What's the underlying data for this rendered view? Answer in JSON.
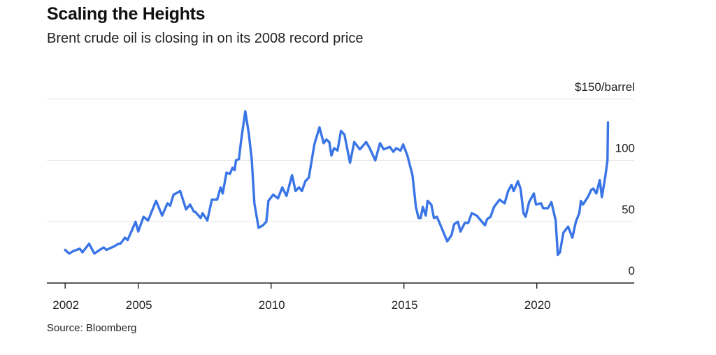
{
  "chart_data": {
    "type": "line",
    "title": "Scaling the Heights",
    "subtitle": "Brent crude oil is closing in on its 2008 record price",
    "source": "Source: Bloomberg",
    "xlabel": "",
    "ylabel": "$/barrel",
    "xlim": [
      2001.75,
      2024.0
    ],
    "ylim": [
      0,
      150
    ],
    "grid": true,
    "y_axis_side": "right",
    "yticks": [
      {
        "value": 0,
        "label": "0"
      },
      {
        "value": 50,
        "label": "50"
      },
      {
        "value": 100,
        "label": "100"
      },
      {
        "value": 150,
        "label": "$150/barrel"
      }
    ],
    "xticks": [
      {
        "value": 2002.25,
        "label": "2002"
      },
      {
        "value": 2005,
        "label": "2005"
      },
      {
        "value": 2010,
        "label": "2010"
      },
      {
        "value": 2015,
        "label": "2015"
      },
      {
        "value": 2020,
        "label": "2020"
      }
    ],
    "series": [
      {
        "name": "Brent crude",
        "color": "#3a75e6",
        "points": [
          [
            2002.25,
            27
          ],
          [
            2002.4,
            24
          ],
          [
            2002.55,
            26
          ],
          [
            2002.8,
            28
          ],
          [
            2002.9,
            25
          ],
          [
            2003.15,
            32
          ],
          [
            2003.35,
            24
          ],
          [
            2003.55,
            27
          ],
          [
            2003.7,
            29
          ],
          [
            2003.8,
            27
          ],
          [
            2004.1,
            30
          ],
          [
            2004.25,
            32
          ],
          [
            2004.33,
            32
          ],
          [
            2004.5,
            37
          ],
          [
            2004.6,
            35
          ],
          [
            2004.7,
            40
          ],
          [
            2004.9,
            50
          ],
          [
            2005.0,
            42
          ],
          [
            2005.2,
            54
          ],
          [
            2005.37,
            51
          ],
          [
            2005.67,
            67
          ],
          [
            2005.9,
            55
          ],
          [
            2006.1,
            65
          ],
          [
            2006.2,
            63
          ],
          [
            2006.33,
            72
          ],
          [
            2006.58,
            75
          ],
          [
            2006.8,
            60
          ],
          [
            2006.95,
            64
          ],
          [
            2007.1,
            58
          ],
          [
            2007.15,
            58
          ],
          [
            2007.35,
            53
          ],
          [
            2007.42,
            57
          ],
          [
            2007.6,
            51
          ],
          [
            2007.77,
            68
          ],
          [
            2007.97,
            68
          ],
          [
            2008.1,
            78
          ],
          [
            2008.18,
            73
          ],
          [
            2008.32,
            90
          ],
          [
            2008.45,
            89
          ],
          [
            2008.55,
            94
          ],
          [
            2008.63,
            92
          ],
          [
            2008.68,
            100
          ],
          [
            2008.79,
            101
          ],
          [
            2008.87,
            116
          ],
          [
            2009.03,
            140
          ],
          [
            2009.16,
            122
          ],
          [
            2009.27,
            101
          ],
          [
            2009.37,
            65
          ],
          [
            2009.53,
            45
          ],
          [
            2009.69,
            47
          ],
          [
            2009.82,
            50
          ],
          [
            2009.9,
            67
          ],
          [
            2010.08,
            72
          ],
          [
            2010.26,
            69
          ],
          [
            2010.42,
            78
          ],
          [
            2010.58,
            71
          ],
          [
            2010.79,
            88
          ],
          [
            2010.92,
            75
          ],
          [
            2011.05,
            78
          ],
          [
            2011.16,
            75
          ],
          [
            2011.29,
            83
          ],
          [
            2011.42,
            86
          ],
          [
            2011.63,
            113
          ],
          [
            2011.82,
            127
          ],
          [
            2011.98,
            114
          ],
          [
            2012.08,
            117
          ],
          [
            2012.19,
            115
          ],
          [
            2012.27,
            104
          ],
          [
            2012.37,
            110
          ],
          [
            2012.5,
            108
          ],
          [
            2012.63,
            124
          ],
          [
            2012.76,
            121
          ],
          [
            2012.97,
            98
          ],
          [
            2013.13,
            115
          ],
          [
            2013.34,
            109
          ],
          [
            2013.58,
            115
          ],
          [
            2013.71,
            110
          ],
          [
            2013.92,
            100
          ],
          [
            2014.1,
            114
          ],
          [
            2014.24,
            109
          ],
          [
            2014.47,
            111
          ],
          [
            2014.6,
            107
          ],
          [
            2014.71,
            110
          ],
          [
            2014.87,
            108
          ],
          [
            2014.97,
            113
          ],
          [
            2015.13,
            104
          ],
          [
            2015.32,
            88
          ],
          [
            2015.45,
            62
          ],
          [
            2015.55,
            53
          ],
          [
            2015.63,
            53
          ],
          [
            2015.71,
            62
          ],
          [
            2015.82,
            55
          ],
          [
            2015.89,
            67
          ],
          [
            2016.03,
            64
          ],
          [
            2016.13,
            53
          ],
          [
            2016.24,
            54
          ],
          [
            2016.34,
            49
          ],
          [
            2016.63,
            34
          ],
          [
            2016.79,
            39
          ],
          [
            2016.89,
            48
          ],
          [
            2017.03,
            50
          ],
          [
            2017.13,
            42
          ],
          [
            2017.29,
            49
          ],
          [
            2017.42,
            49
          ],
          [
            2017.55,
            57
          ],
          [
            2017.74,
            55
          ],
          [
            2018.05,
            47
          ],
          [
            2018.13,
            52
          ],
          [
            2018.26,
            54
          ],
          [
            2018.39,
            62
          ],
          [
            2018.6,
            68
          ],
          [
            2018.79,
            65
          ],
          [
            2018.92,
            75
          ],
          [
            2019.05,
            80
          ],
          [
            2019.13,
            75
          ],
          [
            2019.29,
            83
          ],
          [
            2019.39,
            77
          ],
          [
            2019.5,
            57
          ],
          [
            2019.58,
            54
          ],
          [
            2019.71,
            66
          ],
          [
            2019.89,
            73
          ],
          [
            2019.97,
            64
          ],
          [
            2020.16,
            65
          ],
          [
            2020.24,
            61
          ],
          [
            2020.42,
            61
          ],
          [
            2020.55,
            66
          ],
          [
            2020.71,
            51
          ],
          [
            2020.79,
            23
          ],
          [
            2020.87,
            25
          ],
          [
            2021.0,
            41
          ],
          [
            2021.18,
            46
          ],
          [
            2021.34,
            37
          ],
          [
            2021.47,
            50
          ],
          [
            2021.6,
            57
          ],
          [
            2021.66,
            67
          ],
          [
            2021.74,
            64
          ],
          [
            2021.92,
            70
          ],
          [
            2022.05,
            76
          ],
          [
            2022.13,
            77
          ],
          [
            2022.24,
            73
          ],
          [
            2022.37,
            84
          ],
          [
            2022.45,
            70
          ],
          [
            2022.58,
            87
          ],
          [
            2022.66,
            100
          ],
          [
            2022.68,
            131
          ]
        ]
      }
    ]
  }
}
